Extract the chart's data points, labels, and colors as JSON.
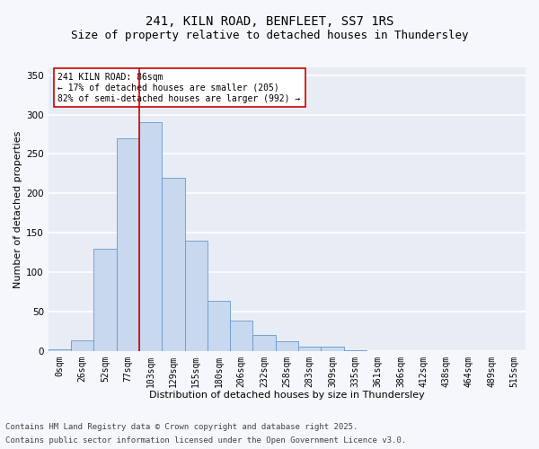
{
  "title1": "241, KILN ROAD, BENFLEET, SS7 1RS",
  "title2": "Size of property relative to detached houses in Thundersley",
  "xlabel": "Distribution of detached houses by size in Thundersley",
  "ylabel": "Number of detached properties",
  "bar_labels": [
    "0sqm",
    "26sqm",
    "52sqm",
    "77sqm",
    "103sqm",
    "129sqm",
    "155sqm",
    "180sqm",
    "206sqm",
    "232sqm",
    "258sqm",
    "283sqm",
    "309sqm",
    "335sqm",
    "361sqm",
    "386sqm",
    "412sqm",
    "438sqm",
    "464sqm",
    "489sqm",
    "515sqm"
  ],
  "bar_values": [
    2,
    13,
    130,
    270,
    290,
    220,
    140,
    63,
    38,
    20,
    12,
    5,
    5,
    1,
    0,
    0,
    0,
    0,
    0,
    0,
    0
  ],
  "bar_color": "#c8d8ef",
  "bar_edge_color": "#6699cc",
  "background_color": "#e8edf5",
  "fig_background": "#f5f7fc",
  "grid_color": "#ffffff",
  "vline_x": 3.5,
  "vline_color": "#cc0000",
  "annotation_text": "241 KILN ROAD: 86sqm\n← 17% of detached houses are smaller (205)\n82% of semi-detached houses are larger (992) →",
  "annotation_box_facecolor": "#ffffff",
  "annotation_box_edgecolor": "#cc0000",
  "ylim": [
    0,
    360
  ],
  "yticks": [
    0,
    50,
    100,
    150,
    200,
    250,
    300,
    350
  ],
  "footer1": "Contains HM Land Registry data © Crown copyright and database right 2025.",
  "footer2": "Contains public sector information licensed under the Open Government Licence v3.0.",
  "title_fontsize": 10,
  "subtitle_fontsize": 9,
  "axis_label_fontsize": 8,
  "tick_fontsize": 7,
  "annotation_fontsize": 7,
  "footer_fontsize": 6.5
}
